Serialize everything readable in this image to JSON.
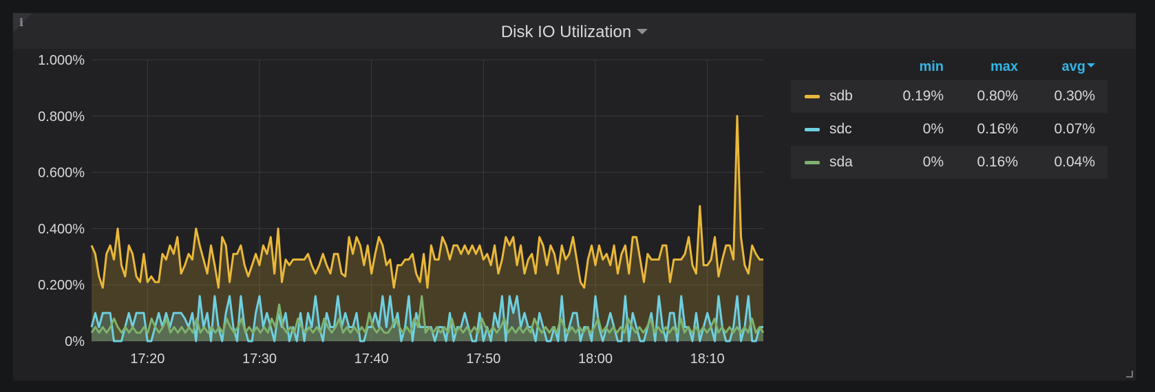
{
  "panel": {
    "title": "Disk IO Utilization"
  },
  "legend": {
    "headers": {
      "min": "min",
      "max": "max",
      "avg": "avg"
    },
    "rows": [
      {
        "name": "sdb",
        "min": "0.19%",
        "max": "0.80%",
        "avg": "0.30%",
        "color": "#eab839"
      },
      {
        "name": "sdc",
        "min": "0%",
        "max": "0.16%",
        "avg": "0.07%",
        "color": "#6ed0e0"
      },
      {
        "name": "sda",
        "min": "0%",
        "max": "0.16%",
        "avg": "0.04%",
        "color": "#7eb26d"
      }
    ]
  },
  "chart_data": {
    "type": "line",
    "area_fill": true,
    "title": "Disk IO Utilization",
    "ylim": [
      0,
      1.0
    ],
    "y_ticks": [
      "0%",
      "0.200%",
      "0.400%",
      "0.600%",
      "0.800%",
      "1.000%"
    ],
    "x_ticks": [
      "17:20",
      "17:30",
      "17:40",
      "17:50",
      "18:00",
      "18:10"
    ],
    "x_range": [
      "17:15",
      "18:15"
    ],
    "grid": true,
    "legend_position": "right",
    "series": [
      {
        "name": "sdb",
        "color": "#eab839",
        "values": [
          0.34,
          0.31,
          0.23,
          0.19,
          0.31,
          0.34,
          0.29,
          0.4,
          0.27,
          0.23,
          0.34,
          0.31,
          0.23,
          0.21,
          0.31,
          0.21,
          0.23,
          0.21,
          0.21,
          0.31,
          0.29,
          0.34,
          0.31,
          0.37,
          0.24,
          0.27,
          0.31,
          0.29,
          0.4,
          0.34,
          0.29,
          0.24,
          0.34,
          0.27,
          0.19,
          0.37,
          0.34,
          0.21,
          0.31,
          0.31,
          0.34,
          0.27,
          0.23,
          0.27,
          0.31,
          0.27,
          0.34,
          0.31,
          0.37,
          0.24,
          0.4,
          0.21,
          0.29,
          0.27,
          0.29,
          0.29,
          0.29,
          0.29,
          0.31,
          0.27,
          0.24,
          0.27,
          0.31,
          0.27,
          0.24,
          0.31,
          0.31,
          0.24,
          0.23,
          0.37,
          0.31,
          0.37,
          0.34,
          0.27,
          0.34,
          0.24,
          0.31,
          0.37,
          0.34,
          0.27,
          0.29,
          0.19,
          0.27,
          0.27,
          0.29,
          0.29,
          0.31,
          0.24,
          0.21,
          0.31,
          0.19,
          0.34,
          0.29,
          0.29,
          0.37,
          0.34,
          0.29,
          0.34,
          0.34,
          0.31,
          0.34,
          0.31,
          0.34,
          0.31,
          0.34,
          0.29,
          0.31,
          0.27,
          0.34,
          0.24,
          0.29,
          0.37,
          0.34,
          0.37,
          0.27,
          0.34,
          0.24,
          0.29,
          0.31,
          0.24,
          0.37,
          0.34,
          0.27,
          0.34,
          0.31,
          0.24,
          0.34,
          0.29,
          0.31,
          0.37,
          0.29,
          0.21,
          0.19,
          0.29,
          0.34,
          0.27,
          0.34,
          0.29,
          0.31,
          0.27,
          0.34,
          0.24,
          0.31,
          0.34,
          0.24,
          0.37,
          0.37,
          0.29,
          0.21,
          0.31,
          0.29,
          0.29,
          0.29,
          0.34,
          0.34,
          0.21,
          0.29,
          0.29,
          0.29,
          0.31,
          0.37,
          0.27,
          0.24,
          0.48,
          0.27,
          0.27,
          0.29,
          0.37,
          0.23,
          0.29,
          0.34,
          0.34,
          0.29,
          0.8,
          0.37,
          0.27,
          0.24,
          0.34,
          0.31,
          0.29,
          0.29
        ]
      },
      {
        "name": "sdc",
        "color": "#6ed0e0",
        "values": [
          0.05,
          0.1,
          0.05,
          0.1,
          0.1,
          0.1,
          0,
          0,
          0,
          0.05,
          0.1,
          0.05,
          0.1,
          0.1,
          0.1,
          0,
          0,
          0.05,
          0.1,
          0.05,
          0.1,
          0.05,
          0.1,
          0.1,
          0.1,
          0.08,
          0.05,
          0.1,
          0,
          0.16,
          0.05,
          0.1,
          0,
          0.16,
          0.05,
          0,
          0.1,
          0.16,
          0.05,
          0,
          0.16,
          0.05,
          0,
          0,
          0.1,
          0.16,
          0.05,
          0.1,
          0.05,
          0,
          0.1,
          0.05,
          0.1,
          0,
          0.05,
          0,
          0.1,
          0,
          0.1,
          0.05,
          0.16,
          0.05,
          0,
          0.1,
          0.05,
          0.05,
          0.16,
          0.05,
          0.1,
          0.05,
          0.05,
          0.1,
          0,
          0,
          0.05,
          0.05,
          0.1,
          0.05,
          0.16,
          0.05,
          0.16,
          0.05,
          0.1,
          0,
          0.05,
          0.16,
          0,
          0.1,
          0.05,
          0.05,
          0.05,
          0.05,
          0,
          0.05,
          0.05,
          0,
          0.1,
          0,
          0.05,
          0.05,
          0.1,
          0.05,
          0,
          0,
          0.1,
          0,
          0.05,
          0,
          0.1,
          0.05,
          0.16,
          0,
          0.16,
          0.1,
          0.16,
          0.05,
          0.1,
          0.05,
          0.05,
          0,
          0.1,
          0.05,
          0,
          0,
          0.05,
          0,
          0.16,
          0,
          0.05,
          0.1,
          0.1,
          0,
          0.05,
          0.05,
          0,
          0.16,
          0.05,
          0,
          0.05,
          0.1,
          0.05,
          0,
          0,
          0.16,
          0,
          0.1,
          0.05,
          0,
          0,
          0.05,
          0.1,
          0,
          0.16,
          0.05,
          0,
          0.1,
          0.1,
          0,
          0.16,
          0.05,
          0.05,
          0,
          0.1,
          0,
          0.05,
          0.1,
          0.05,
          0,
          0.16,
          0.05,
          0,
          0,
          0.05,
          0.16,
          0,
          0.05,
          0.16,
          0,
          0,
          0.05,
          0.05
        ]
      },
      {
        "name": "sda",
        "color": "#7eb26d",
        "values": [
          0.03,
          0.05,
          0.03,
          0.05,
          0.03,
          0.05,
          0.08,
          0.05,
          0.03,
          0.05,
          0.03,
          0.05,
          0.03,
          0.03,
          0.05,
          0.03,
          0.08,
          0.05,
          0.03,
          0.05,
          0.08,
          0.03,
          0.05,
          0.03,
          0.05,
          0.03,
          0.05,
          0.03,
          0.08,
          0.03,
          0.05,
          0.03,
          0.05,
          0.03,
          0.05,
          0.03,
          0.08,
          0.05,
          0.03,
          0.05,
          0.08,
          0.03,
          0.05,
          0.03,
          0.05,
          0.03,
          0.05,
          0.03,
          0.08,
          0.05,
          0.13,
          0.05,
          0.03,
          0.05,
          0.03,
          0.08,
          0.05,
          0.03,
          0.05,
          0.03,
          0.05,
          0.03,
          0.08,
          0.05,
          0.03,
          0.05,
          0.08,
          0.03,
          0.05,
          0.03,
          0.05,
          0.03,
          0.05,
          0.03,
          0.1,
          0.05,
          0.03,
          0.05,
          0.03,
          0.03,
          0.05,
          0.08,
          0.05,
          0.03,
          0.05,
          0.03,
          0.08,
          0.05,
          0.16,
          0.03,
          0.05,
          0.03,
          0.05,
          0.03,
          0.05,
          0.03,
          0.08,
          0.03,
          0.05,
          0.03,
          0.05,
          0.03,
          0.05,
          0.03,
          0.08,
          0.05,
          0.03,
          0.05,
          0.03,
          0.05,
          0.08,
          0.03,
          0.05,
          0.03,
          0.05,
          0.03,
          0.05,
          0.03,
          0.08,
          0.05,
          0.03,
          0.05,
          0.03,
          0.05,
          0.03,
          0.08,
          0.05,
          0.03,
          0.05,
          0.03,
          0.05,
          0.03,
          0.05,
          0.03,
          0.05,
          0.08,
          0.03,
          0.05,
          0.03,
          0.05,
          0.03,
          0.05,
          0.03,
          0.08,
          0.05,
          0.03,
          0.05,
          0.03,
          0.05,
          0.08,
          0.03,
          0.05,
          0.03,
          0.05,
          0.03,
          0.05,
          0.03,
          0.08,
          0.03,
          0.05,
          0.03,
          0.05,
          0.03,
          0.05,
          0.03,
          0.05,
          0.08,
          0.03,
          0.05,
          0.03,
          0.05,
          0.03,
          0.05,
          0.03,
          0.05,
          0.03,
          0.08,
          0.03,
          0.05,
          0.03
        ]
      }
    ]
  }
}
